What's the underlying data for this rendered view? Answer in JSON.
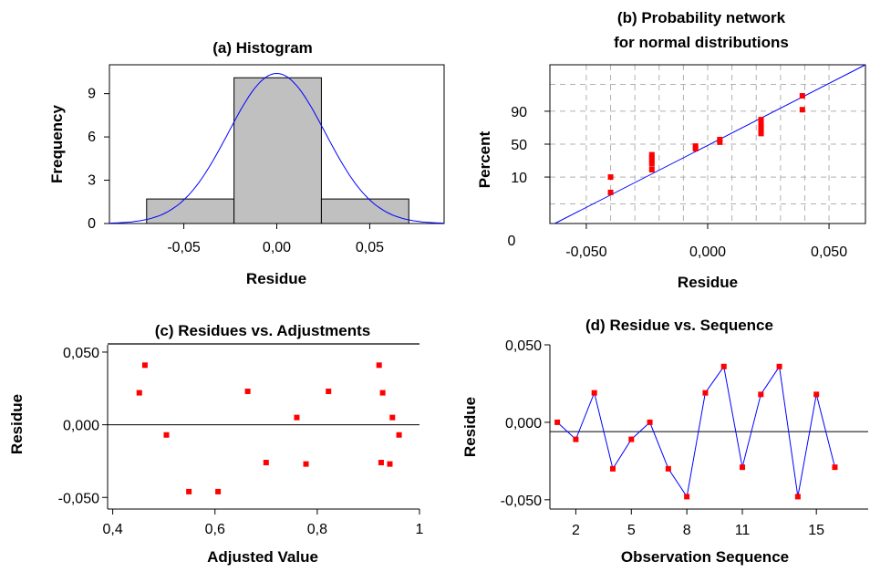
{
  "chart_data": [
    {
      "id": "a",
      "type": "histogram",
      "title": "(a) Histogram",
      "xlabel": "Residue",
      "ylabel": "Frequency",
      "xlim": [
        -0.09,
        0.09
      ],
      "ylim": [
        0,
        11
      ],
      "x_ticks": [
        {
          "value": -0.05,
          "label": "-0,05"
        },
        {
          "value": 0.0,
          "label": "0,00"
        },
        {
          "value": 0.05,
          "label": "0,05"
        }
      ],
      "y_ticks": [
        {
          "value": 0,
          "label": "0"
        },
        {
          "value": 3,
          "label": "3"
        },
        {
          "value": 6,
          "label": "6"
        },
        {
          "value": 9,
          "label": "9"
        }
      ],
      "bins": [
        {
          "from": -0.07,
          "to": -0.023,
          "count": 1.7
        },
        {
          "from": -0.023,
          "to": 0.024,
          "count": 10.1
        },
        {
          "from": 0.024,
          "to": 0.071,
          "count": 1.7
        }
      ],
      "fit_curve": {
        "mean": 0.0,
        "sd": 0.026,
        "peak": 10.4
      },
      "bar_color": "#c0c0c0",
      "curve_color": "#0000ff"
    },
    {
      "id": "b",
      "type": "scatter",
      "title_lines": [
        "(b) Probability network",
        "for normal distributions"
      ],
      "xlabel": "Residue",
      "ylabel": "Percent",
      "xlim": [
        -0.065,
        0.065
      ],
      "y_scale": "normal-probability",
      "x_ticks": [
        {
          "value": -0.05,
          "label": "-0,050"
        },
        {
          "value": 0.0,
          "label": "0,000"
        },
        {
          "value": 0.05,
          "label": "0,050"
        }
      ],
      "y_ticks": [
        {
          "value": 10,
          "label": "10"
        },
        {
          "value": 50,
          "label": "50"
        },
        {
          "value": 90,
          "label": "90"
        }
      ],
      "y_floor_label": "0",
      "grid": true,
      "points": [
        {
          "x": -0.04,
          "y": 3
        },
        {
          "x": -0.04,
          "y": 10
        },
        {
          "x": -0.023,
          "y": 16
        },
        {
          "x": -0.023,
          "y": 22
        },
        {
          "x": -0.023,
          "y": 26
        },
        {
          "x": -0.023,
          "y": 30
        },
        {
          "x": -0.023,
          "y": 34
        },
        {
          "x": -0.005,
          "y": 43
        },
        {
          "x": -0.005,
          "y": 47
        },
        {
          "x": 0.005,
          "y": 53
        },
        {
          "x": 0.005,
          "y": 57
        },
        {
          "x": 0.022,
          "y": 66
        },
        {
          "x": 0.022,
          "y": 70
        },
        {
          "x": 0.022,
          "y": 74
        },
        {
          "x": 0.022,
          "y": 78
        },
        {
          "x": 0.022,
          "y": 83
        },
        {
          "x": 0.039,
          "y": 91
        },
        {
          "x": 0.039,
          "y": 97
        }
      ],
      "fit_line": {
        "x1": -0.063,
        "y1": 0.1,
        "x2": 0.065,
        "y2": 99.9
      },
      "point_color": "#ff0000",
      "line_color": "#0000ff"
    },
    {
      "id": "c",
      "type": "scatter",
      "title": "(c) Residues vs. Adjustments",
      "xlabel": "Adjusted Value",
      "ylabel": "Residue",
      "xlim": [
        0.39,
        1.0
      ],
      "ylim": [
        -0.058,
        0.055
      ],
      "x_ticks": [
        {
          "value": 0.4,
          "label": "0,4"
        },
        {
          "value": 0.6,
          "label": "0,6"
        },
        {
          "value": 0.8,
          "label": "0,8"
        },
        {
          "value": 1.0,
          "label": "1"
        }
      ],
      "y_ticks": [
        {
          "value": -0.05,
          "label": "-0,050"
        },
        {
          "value": 0.0,
          "label": "0,000"
        },
        {
          "value": 0.05,
          "label": "0,050"
        }
      ],
      "reference_line": 0.0,
      "points": [
        {
          "x": 0.452,
          "y": 0.022
        },
        {
          "x": 0.463,
          "y": 0.041
        },
        {
          "x": 0.505,
          "y": -0.007
        },
        {
          "x": 0.549,
          "y": -0.046
        },
        {
          "x": 0.606,
          "y": -0.046
        },
        {
          "x": 0.664,
          "y": 0.023
        },
        {
          "x": 0.7,
          "y": -0.026
        },
        {
          "x": 0.76,
          "y": 0.005
        },
        {
          "x": 0.778,
          "y": -0.027
        },
        {
          "x": 0.822,
          "y": 0.023
        },
        {
          "x": 0.921,
          "y": 0.041
        },
        {
          "x": 0.925,
          "y": -0.026
        },
        {
          "x": 0.928,
          "y": 0.022
        },
        {
          "x": 0.942,
          "y": -0.027
        },
        {
          "x": 0.947,
          "y": 0.005
        },
        {
          "x": 0.96,
          "y": -0.007
        }
      ],
      "point_color": "#ff0000",
      "line_color": "#000000"
    },
    {
      "id": "d",
      "type": "line",
      "title": "(d) Residue vs. Sequence",
      "xlabel": "Observation Sequence",
      "ylabel": "Residue",
      "xlim": [
        0.6,
        17.8
      ],
      "ylim": [
        -0.056,
        0.05
      ],
      "x_ticks": [
        {
          "value": 2,
          "label": "2"
        },
        {
          "value": 5,
          "label": "5"
        },
        {
          "value": 8,
          "label": "8"
        },
        {
          "value": 11,
          "label": "11"
        },
        {
          "value": 15,
          "label": "15"
        }
      ],
      "y_ticks": [
        {
          "value": -0.05,
          "label": "-0,050"
        },
        {
          "value": 0.0,
          "label": "0,000"
        },
        {
          "value": 0.05,
          "label": "0,050"
        }
      ],
      "reference_line": -0.006,
      "points": [
        {
          "x": 1,
          "y": 0.0
        },
        {
          "x": 2,
          "y": -0.011
        },
        {
          "x": 3,
          "y": 0.019
        },
        {
          "x": 4,
          "y": -0.03
        },
        {
          "x": 5,
          "y": -0.011
        },
        {
          "x": 6,
          "y": 0.0
        },
        {
          "x": 7,
          "y": -0.03
        },
        {
          "x": 8,
          "y": -0.048
        },
        {
          "x": 9,
          "y": 0.019
        },
        {
          "x": 10,
          "y": 0.036
        },
        {
          "x": 11,
          "y": -0.029
        },
        {
          "x": 12,
          "y": 0.018
        },
        {
          "x": 13,
          "y": 0.036
        },
        {
          "x": 14,
          "y": -0.048
        },
        {
          "x": 15,
          "y": 0.018
        },
        {
          "x": 16,
          "y": -0.029
        }
      ],
      "point_color": "#ff0000",
      "line_color": "#0000ff",
      "ref_color": "#000000"
    }
  ]
}
